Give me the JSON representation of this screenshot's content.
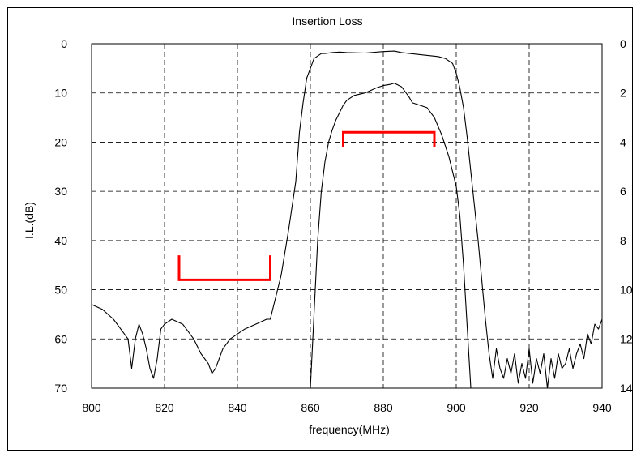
{
  "chart_data": {
    "type": "line",
    "title": "Insertion Loss",
    "xlabel": "frequency(MHz)",
    "ylabel": "I.L.(dB)",
    "xlim": [
      800,
      940
    ],
    "ylim": [
      0,
      70
    ],
    "y2lim": [
      0,
      14
    ],
    "y_inverted": true,
    "grid": true,
    "x_ticks": [
      800,
      820,
      840,
      860,
      880,
      900,
      920,
      940
    ],
    "y_ticks": [
      0,
      10,
      20,
      30,
      40,
      50,
      60,
      70
    ],
    "y2_ticks": [
      0,
      2,
      4,
      6,
      8,
      10,
      12,
      14
    ],
    "series": [
      {
        "axis": "left",
        "color": "#000000",
        "x": [
          800,
          803,
          806,
          808,
          810,
          811,
          812,
          813,
          814,
          815,
          816,
          817,
          818,
          819,
          820,
          822,
          825,
          828,
          830,
          832,
          833,
          834,
          836,
          838,
          840,
          842,
          845,
          848,
          849,
          850,
          852,
          854,
          856,
          857,
          858,
          859,
          860,
          861,
          862,
          863,
          864,
          866,
          868,
          870,
          875,
          880,
          883,
          885,
          890,
          895,
          897,
          899,
          900,
          901,
          902,
          903,
          904,
          905,
          906,
          907,
          908,
          909,
          910,
          911,
          912,
          913,
          914,
          915,
          916,
          917,
          918,
          919,
          920,
          921,
          922,
          923,
          924,
          925,
          926,
          927,
          928,
          929,
          930,
          931,
          932,
          933,
          934,
          935,
          936,
          937,
          938,
          939,
          940
        ],
        "y": [
          53,
          54,
          56,
          58,
          60,
          66,
          60,
          57,
          59,
          62,
          66,
          68,
          64,
          58,
          57,
          56,
          57,
          60,
          63,
          65,
          67,
          66,
          62,
          60,
          59,
          58,
          57,
          56,
          56,
          53,
          47,
          38,
          28,
          18,
          12,
          7,
          5,
          3,
          2.5,
          2,
          2,
          1.8,
          1.7,
          1.8,
          1.9,
          1.6,
          1.5,
          1.8,
          2.2,
          2.6,
          3,
          4,
          6,
          9,
          13,
          19,
          26,
          33,
          40,
          48,
          56,
          63,
          68,
          62,
          66,
          68,
          64,
          67,
          63,
          69,
          65,
          68,
          62,
          69,
          64,
          67,
          63,
          70,
          64,
          68,
          63,
          66,
          65,
          62,
          66,
          63,
          61,
          64,
          59,
          61,
          57,
          58,
          56
        ]
      },
      {
        "axis": "right",
        "color": "#000000",
        "x": [
          860,
          861,
          862,
          863,
          864,
          865,
          866,
          867,
          868,
          869,
          870,
          872,
          875,
          878,
          880,
          882,
          883,
          885,
          887,
          888,
          890,
          892,
          894,
          896,
          898,
          900,
          901,
          902,
          903,
          904
        ],
        "y": [
          14,
          11,
          8,
          6,
          4.8,
          4,
          3.5,
          3.1,
          2.8,
          2.5,
          2.3,
          2.1,
          2,
          1.8,
          1.7,
          1.65,
          1.6,
          1.75,
          2.15,
          2.4,
          2.5,
          2.6,
          3,
          3.7,
          4.6,
          5.8,
          7,
          9,
          11.5,
          14
        ]
      }
    ],
    "annotations": [
      {
        "type": "bracket",
        "color": "#ff0000",
        "axis": "left",
        "x_from": 824,
        "x_to": 849,
        "y_tip": 43,
        "y_bar": 48
      },
      {
        "type": "bracket",
        "color": "#ff0000",
        "axis": "left",
        "x_from": 869,
        "x_to": 894,
        "y_tip": 21,
        "y_bar": 18
      }
    ]
  }
}
